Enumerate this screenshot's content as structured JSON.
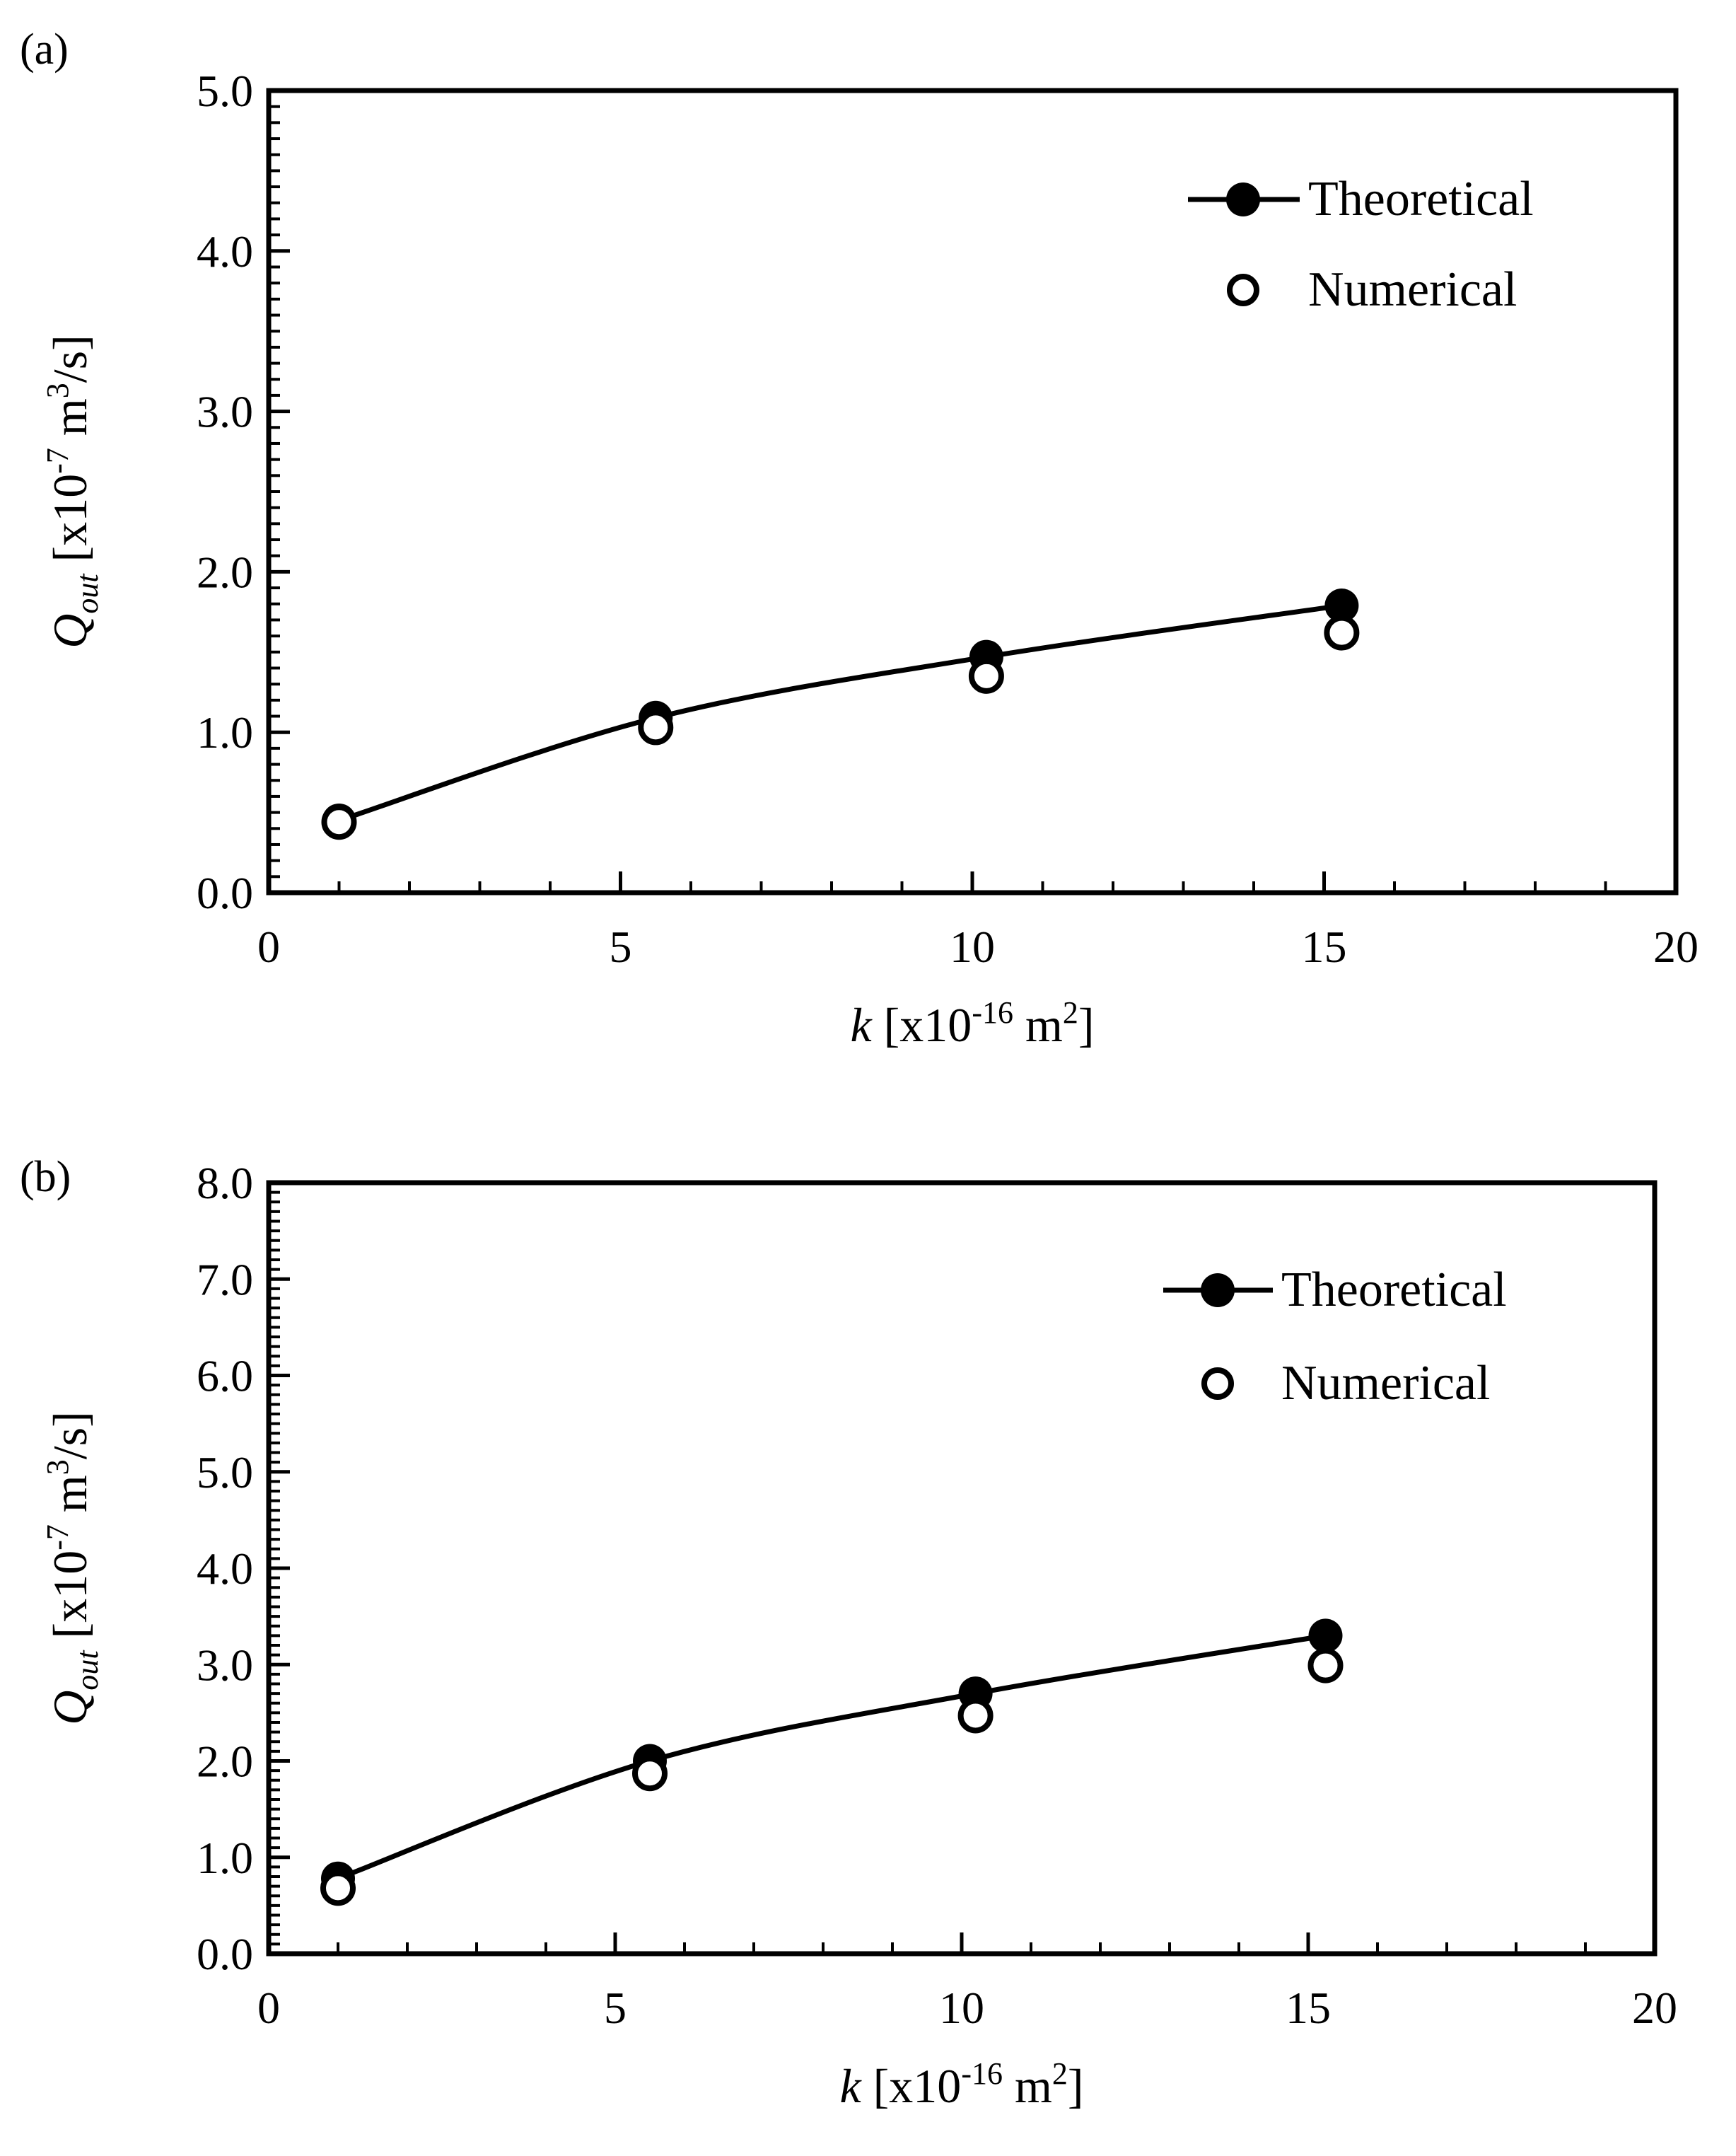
{
  "chart_data": [
    {
      "panel_label": "(a)",
      "type": "line",
      "xlabel": {
        "var": "k",
        "pre": " [x10",
        "sup1": "-16",
        "mid": " m",
        "sup2": "2",
        "post": "]"
      },
      "ylabel": {
        "var": "Q",
        "sub": "out",
        "pre": " [x10",
        "sup1": "-7",
        "mid": " m",
        "sup2": "3",
        "post": "/s]"
      },
      "xlim": [
        0,
        20
      ],
      "ylim": [
        0,
        5
      ],
      "xticks": [
        "0",
        "5",
        "10",
        "15",
        "20"
      ],
      "yticks": [
        "0.0",
        "1.0",
        "2.0",
        "3.0",
        "4.0",
        "5.0"
      ],
      "legend_position": "top-right",
      "series": [
        {
          "name": "Theoretical",
          "style": "filled-marker-line",
          "x": [
            1,
            5.5,
            10.2,
            15.25
          ],
          "y": [
            0.45,
            1.09,
            1.47,
            1.79
          ]
        },
        {
          "name": "Numerical",
          "style": "open-marker",
          "x": [
            1,
            5.5,
            10.2,
            15.25
          ],
          "y": [
            0.44,
            1.03,
            1.35,
            1.62
          ]
        }
      ]
    },
    {
      "panel_label": "(b)",
      "type": "line",
      "xlabel": {
        "var": "k",
        "pre": " [x10",
        "sup1": "-16",
        "mid": " m",
        "sup2": "2",
        "post": "]"
      },
      "ylabel": {
        "var": "Q",
        "sub": "out",
        "pre": " [x10",
        "sup1": "-7",
        "mid": " m",
        "sup2": "3",
        "post": "/s]"
      },
      "xlim": [
        0,
        20
      ],
      "ylim": [
        0,
        8
      ],
      "xticks": [
        "0",
        "5",
        "10",
        "15",
        "20"
      ],
      "yticks": [
        "0.0",
        "1.0",
        "2.0",
        "3.0",
        "4.0",
        "5.0",
        "6.0",
        "7.0",
        "8.0"
      ],
      "legend_position": "top-right",
      "series": [
        {
          "name": "Theoretical",
          "style": "filled-marker-line",
          "x": [
            1,
            5.5,
            10.2,
            15.25
          ],
          "y": [
            0.78,
            2.0,
            2.7,
            3.3
          ]
        },
        {
          "name": "Numerical",
          "style": "open-marker",
          "x": [
            1,
            5.5,
            10.2,
            15.25
          ],
          "y": [
            0.68,
            1.87,
            2.47,
            2.99
          ]
        }
      ]
    }
  ]
}
